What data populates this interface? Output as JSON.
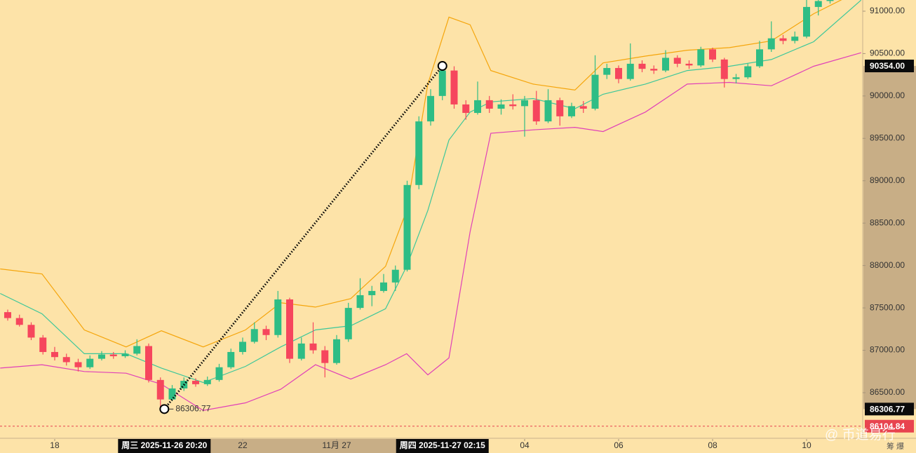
{
  "chart_data": {
    "type": "candlestick",
    "background": "#fde3a8",
    "up_color": "#2ebd85",
    "down_color": "#f6465d",
    "xlim": [
      16.836,
      35.194
    ],
    "ylim": [
      85987,
      91132
    ],
    "xticks": [
      18,
      22,
      {
        "value": 24,
        "label": "11月 27"
      },
      {
        "value": 28,
        "label": "04"
      },
      {
        "value": 30,
        "label": "06"
      },
      {
        "value": 32,
        "label": "08"
      },
      {
        "value": 34,
        "label": "10"
      }
    ],
    "yticks": [
      {
        "value": 91000,
        "label": "91000.00"
      },
      {
        "value": 90500,
        "label": "90500.00"
      },
      {
        "value": 90000,
        "label": "90000.00"
      },
      {
        "value": 89500,
        "label": "89500.00"
      },
      {
        "value": 89000,
        "label": "89000.00"
      },
      {
        "value": 88500,
        "label": "88500.00"
      },
      {
        "value": 88000,
        "label": "88000.00"
      },
      {
        "value": 87500,
        "label": "87500.00"
      },
      {
        "value": 87000,
        "label": "87000.00"
      },
      {
        "value": 86500,
        "label": "86500.00"
      }
    ],
    "x": [
      17,
      17.25,
      17.5,
      17.75,
      18,
      18.25,
      18.5,
      18.75,
      19,
      19.25,
      19.5,
      19.75,
      20,
      20.25,
      20.5,
      20.75,
      21,
      21.25,
      21.5,
      21.75,
      22,
      22.25,
      22.5,
      22.75,
      23,
      23.25,
      23.5,
      23.75,
      24,
      24.25,
      24.5,
      24.75,
      25,
      25.25,
      25.5,
      25.75,
      26,
      26.25,
      26.5,
      26.75,
      27,
      27.25,
      27.5,
      27.75,
      28,
      28.25,
      28.5,
      28.75,
      29,
      29.25,
      29.5,
      29.75,
      30,
      30.25,
      30.5,
      30.75,
      31,
      31.25,
      31.5,
      31.75,
      32,
      32.25,
      32.5,
      32.75,
      33,
      33.25,
      33.5,
      33.75,
      34,
      34.25,
      34.5
    ],
    "open": [
      87450,
      87380,
      87300,
      87150,
      86980,
      86920,
      86860,
      86800,
      86900,
      86950,
      86930,
      86960,
      87050,
      86650,
      86420,
      86550,
      86640,
      86600,
      86650,
      86800,
      86980,
      87100,
      87250,
      87180,
      87600,
      86900,
      87080,
      87000,
      86850,
      87130,
      87500,
      87650,
      87700,
      87800,
      87950,
      88950,
      89700,
      90000,
      90300,
      89900,
      89800,
      89950,
      89850,
      89900,
      89880,
      89950,
      89700,
      89950,
      89760,
      89880,
      89850,
      90250,
      90330,
      90200,
      90380,
      90320,
      90300,
      90450,
      90380,
      90360,
      90550,
      90430,
      90200,
      90220,
      90350,
      90550,
      90680,
      90650,
      90700,
      91050,
      91120
    ],
    "high": [
      87480,
      87420,
      87330,
      87180,
      87040,
      86960,
      86900,
      86940,
      86990,
      86980,
      87000,
      87130,
      87080,
      86680,
      86590,
      86680,
      86670,
      86690,
      86840,
      87020,
      87150,
      87330,
      87290,
      87700,
      87620,
      87150,
      87330,
      87050,
      87180,
      87560,
      87850,
      87760,
      87900,
      88000,
      89000,
      89760,
      90080,
      90354,
      90350,
      89950,
      90170,
      90000,
      89960,
      90020,
      90000,
      90060,
      90080,
      89980,
      89920,
      89940,
      90480,
      90380,
      90360,
      90620,
      90420,
      90360,
      90540,
      90480,
      90420,
      90580,
      90570,
      90450,
      90260,
      90380,
      90650,
      90880,
      90720,
      90760,
      91200,
      91160,
      91220
    ],
    "low": [
      87350,
      87280,
      87120,
      86950,
      86880,
      86820,
      86750,
      86780,
      86880,
      86900,
      86910,
      86940,
      86620,
      86306.77,
      86400,
      86520,
      86570,
      86580,
      86630,
      86780,
      86950,
      87080,
      87120,
      87150,
      86850,
      86880,
      86960,
      86680,
      86830,
      87100,
      87480,
      87520,
      87680,
      87700,
      87930,
      88900,
      89650,
      89950,
      89850,
      89720,
      89780,
      89800,
      89780,
      89840,
      89520,
      89660,
      89680,
      89650,
      89740,
      89800,
      89830,
      90200,
      90150,
      90180,
      90280,
      90260,
      90280,
      90340,
      90320,
      90340,
      90400,
      90100,
      90150,
      90200,
      90330,
      90520,
      90610,
      90620,
      90680,
      90950,
      91090
    ],
    "close": [
      87380,
      87300,
      87150,
      86980,
      86920,
      86860,
      86800,
      86900,
      86950,
      86930,
      86960,
      87050,
      86650,
      86420,
      86550,
      86640,
      86600,
      86650,
      86800,
      86980,
      87100,
      87250,
      87180,
      87600,
      86900,
      87080,
      87000,
      86850,
      87130,
      87500,
      87650,
      87700,
      87800,
      87950,
      88950,
      89700,
      90000,
      90300,
      89900,
      89800,
      89950,
      89850,
      89900,
      89880,
      89950,
      89700,
      89950,
      89760,
      89880,
      89850,
      90250,
      90330,
      90200,
      90380,
      90320,
      90300,
      90450,
      90380,
      90360,
      90550,
      90430,
      90200,
      90220,
      90350,
      90550,
      90680,
      90650,
      90700,
      91050,
      91120,
      91180
    ],
    "overlays": {
      "x": [
        16.84,
        17.73,
        18.63,
        19.52,
        20.27,
        21.16,
        22.06,
        22.81,
        23.55,
        24.3,
        25.04,
        25.49,
        25.94,
        26.39,
        26.84,
        27.28,
        28.18,
        29.07,
        29.67,
        30.57,
        31.46,
        32.36,
        33.25,
        34.15,
        35.16
      ],
      "series": [
        {
          "color": "#f5a50b",
          "values": [
            87960,
            87900,
            87240,
            87040,
            87230,
            87040,
            87240,
            87560,
            87510,
            87610,
            87990,
            88650,
            90140,
            90930,
            90840,
            90300,
            90140,
            90070,
            90390,
            90470,
            90540,
            90570,
            90650,
            90970,
            91250
          ]
        },
        {
          "color": "#3cc79a",
          "values": [
            87670,
            87430,
            86960,
            86960,
            86790,
            86620,
            86810,
            87040,
            87240,
            87290,
            87490,
            87990,
            88650,
            89480,
            89810,
            89930,
            89970,
            89850,
            90020,
            90140,
            90300,
            90350,
            90430,
            90640,
            91130
          ]
        },
        {
          "color": "#e040b8",
          "values": [
            86790,
            86830,
            86750,
            86730,
            86600,
            86290,
            86380,
            86540,
            86830,
            86660,
            86830,
            86960,
            86710,
            86910,
            88400,
            89560,
            89600,
            89630,
            89580,
            89810,
            90140,
            90160,
            90120,
            90350,
            90510
          ]
        }
      ]
    },
    "measure": {
      "start": {
        "x": 20.3333,
        "y": 86306.77
      },
      "end": {
        "x": 26.25,
        "y": 90354
      }
    },
    "price_badges": [
      {
        "value": 90354,
        "label": "90354.00",
        "color": "#0b0b0b"
      },
      {
        "value": 86306.77,
        "label": "86306.77",
        "color": "#0b0b0b"
      },
      {
        "value": 86104.84,
        "label": "86104.84",
        "color": "#e8434f"
      }
    ],
    "time_markers": [
      {
        "value": 20.3333,
        "label": "周三 2025-11-26 20:20"
      },
      {
        "value": 26.25,
        "label": "周四 2025-11-27 02:15"
      }
    ],
    "watermark": "@ 币道易行",
    "corner_text": "筹 爆"
  }
}
